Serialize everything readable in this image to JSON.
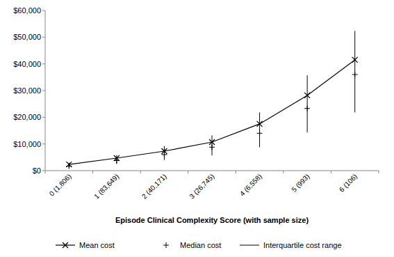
{
  "chart_data": {
    "type": "line",
    "x_label": "Episode Clinical Complexity Score (with sample size)",
    "categories": [
      "0 (1,806)",
      "1 (83,649)",
      "2 (40,171)",
      "3 (26,745)",
      "4 (6,558)",
      "5 (993)",
      "6 (106)"
    ],
    "ylim": [
      0,
      60000
    ],
    "yticks": [
      {
        "value": 0,
        "label": "$0"
      },
      {
        "value": 10000,
        "label": "$10,000"
      },
      {
        "value": 20000,
        "label": "$20,000"
      },
      {
        "value": 30000,
        "label": "$30,000"
      },
      {
        "value": 40000,
        "label": "$40,000"
      },
      {
        "value": 50000,
        "label": "$50,000"
      },
      {
        "value": 60000,
        "label": "$60,000"
      }
    ],
    "grid": false,
    "legend": "bottom",
    "series": [
      {
        "name": "Mean cost",
        "type": "line",
        "marker": "x",
        "color": "#000000",
        "values": [
          2300,
          4700,
          7300,
          10700,
          17500,
          28200,
          41500
        ]
      },
      {
        "name": "Median cost",
        "type": "scatter",
        "marker": "+",
        "color": "#000000",
        "values": [
          1700,
          3800,
          6000,
          8800,
          14000,
          23300,
          36000
        ]
      },
      {
        "name": "Interquartile cost range",
        "type": "range",
        "color": "#000000",
        "low": [
          900,
          2500,
          4000,
          5700,
          8800,
          14300,
          21800
        ],
        "high": [
          3000,
          5800,
          9200,
          13200,
          21800,
          35700,
          52300
        ]
      }
    ]
  }
}
